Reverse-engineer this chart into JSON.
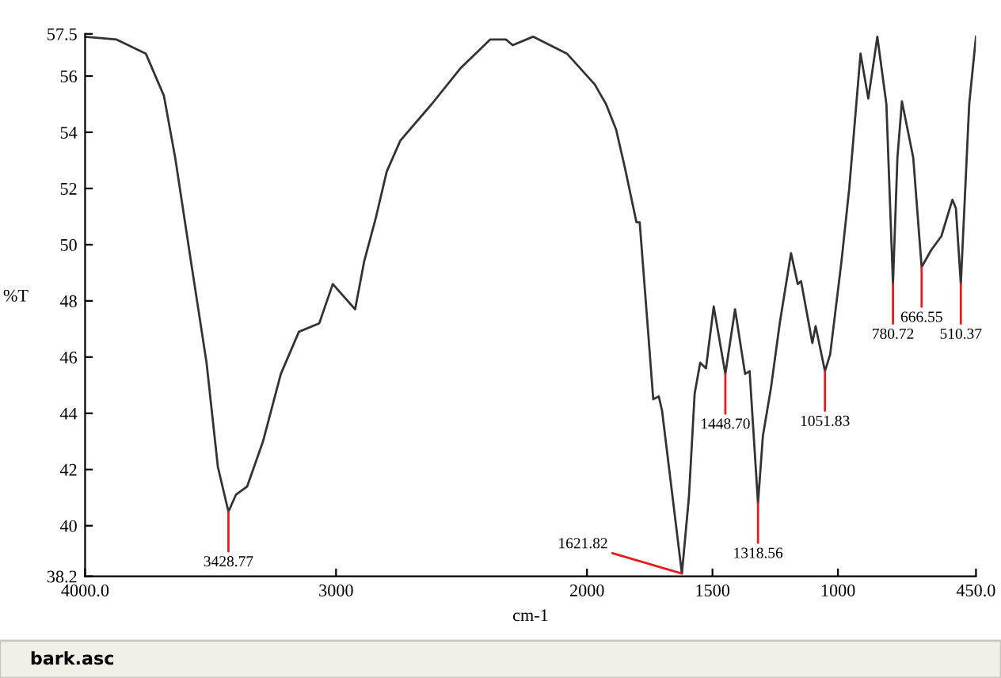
{
  "chart_data": {
    "type": "line",
    "xlabel": "cm-1",
    "ylabel": "%T",
    "x": [
      4000,
      3874,
      3758,
      3686,
      3641,
      3578,
      3516,
      3471,
      3428.77,
      3399,
      3354,
      3291,
      3220,
      3148,
      3067,
      3013,
      2924,
      2888,
      2843,
      2798,
      2744,
      2619,
      2502,
      2386,
      2323,
      2296,
      2215,
      2080,
      1969,
      1924,
      1884,
      1848,
      1803,
      1790,
      1759,
      1736,
      1714,
      1701,
      1621.82,
      1594,
      1571,
      1549,
      1526,
      1495,
      1448.7,
      1410,
      1370,
      1352,
      1318.56,
      1299,
      1267,
      1232,
      1187,
      1160,
      1147,
      1102,
      1089,
      1051.83,
      1031,
      986,
      955,
      910,
      879,
      843,
      807,
      780.72,
      763,
      745,
      700,
      666.55,
      629,
      588,
      544,
      530,
      510.37,
      477,
      450
    ],
    "series": [
      {
        "color": "#333333",
        "values": [
          57.4,
          57.3,
          56.8,
          55.3,
          53.1,
          49.4,
          45.8,
          42.1,
          40.5,
          41.1,
          41.4,
          43.0,
          45.4,
          46.9,
          47.2,
          48.6,
          47.7,
          49.4,
          50.9,
          52.6,
          53.7,
          55.0,
          56.3,
          57.3,
          57.3,
          57.1,
          57.4,
          56.8,
          55.7,
          55.0,
          54.1,
          52.7,
          50.8,
          50.8,
          47.2,
          44.5,
          44.6,
          44.1,
          38.3,
          41.0,
          44.7,
          45.8,
          45.6,
          47.8,
          45.4,
          47.7,
          45.4,
          45.5,
          40.8,
          43.2,
          44.9,
          47.2,
          49.7,
          48.6,
          48.7,
          46.5,
          47.1,
          45.5,
          46.1,
          49.4,
          52.0,
          56.8,
          55.2,
          57.4,
          55.0,
          48.6,
          53.1,
          55.1,
          53.1,
          49.2,
          49.8,
          50.3,
          51.6,
          51.3,
          48.6,
          55.0,
          57.4
        ]
      }
    ],
    "xlim": [
      4000,
      450
    ],
    "xticks": [
      {
        "value": 4000,
        "label": "4000.0"
      },
      3000,
      2000,
      1500,
      1000,
      {
        "value": 450,
        "label": "450.0"
      }
    ],
    "ylim": [
      38.2,
      57.5
    ],
    "yticks": [
      38.2,
      40,
      42,
      44,
      46,
      48,
      50,
      52,
      54,
      56,
      57.5
    ],
    "grid": false,
    "legend": false,
    "marker": "none",
    "line_style": "solid",
    "annotations": [
      {
        "text": "3428.77",
        "x": 3428.77,
        "y": 40.5
      },
      {
        "text": "1621.82",
        "x": 1621.82,
        "y": 38.3
      },
      {
        "text": "1448.70",
        "x": 1448.7,
        "y": 45.4
      },
      {
        "text": "1318.56",
        "x": 1318.56,
        "y": 40.8
      },
      {
        "text": "1051.83",
        "x": 1051.83,
        "y": 45.5
      },
      {
        "text": "780.72",
        "x": 780.72,
        "y": 48.6
      },
      {
        "text": "666.55",
        "x": 666.55,
        "y": 49.2
      },
      {
        "text": "510.37",
        "x": 510.37,
        "y": 48.6
      },
      "bark.asc"
    ]
  }
}
